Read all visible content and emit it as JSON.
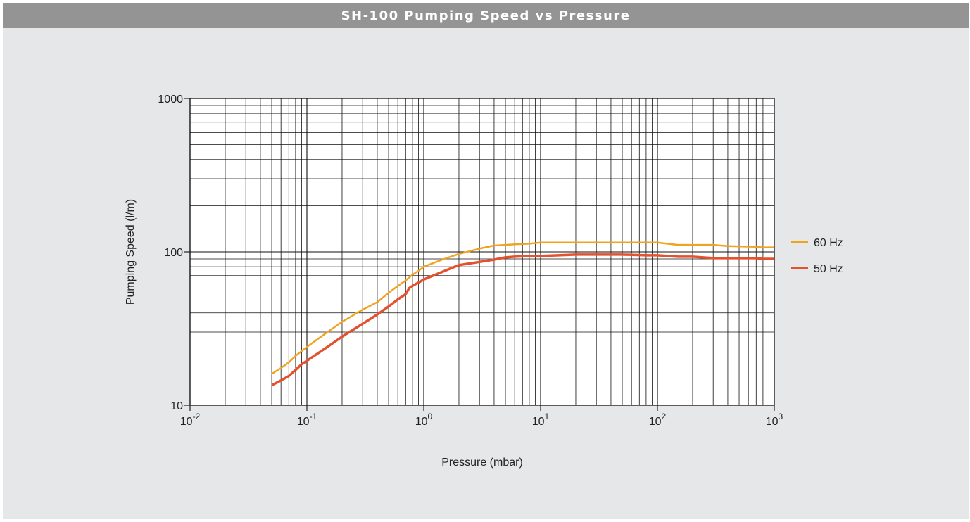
{
  "header": {
    "title": "SH-100 Pumping Speed vs Pressure"
  },
  "chart_data": {
    "type": "line",
    "title": "SH-100 Pumping Speed vs Pressure",
    "xlabel": "Pressure (mbar)",
    "ylabel": "Pumping Speed (l/m)",
    "x_scale": "log",
    "y_scale": "log",
    "xlim": [
      0.01,
      1000
    ],
    "ylim": [
      10,
      1000
    ],
    "x_ticks": [
      {
        "base": "10",
        "exp": "-2"
      },
      {
        "base": "10",
        "exp": "-1"
      },
      {
        "base": "10",
        "exp": "0"
      },
      {
        "base": "10",
        "exp": "1"
      },
      {
        "base": "10",
        "exp": "2"
      },
      {
        "base": "10",
        "exp": "3"
      }
    ],
    "y_ticks": [
      "10",
      "100",
      "1000"
    ],
    "grid": true,
    "legend_position": "right",
    "series": [
      {
        "name": "60 Hz",
        "color": "#f0a320",
        "x": [
          0.05,
          0.06,
          0.07,
          0.08,
          0.09,
          0.1,
          0.15,
          0.2,
          0.3,
          0.4,
          0.5,
          0.6,
          0.7,
          0.8,
          0.9,
          1.0,
          1.5,
          2,
          3,
          4,
          5,
          6,
          8,
          10,
          20,
          50,
          100,
          150,
          200,
          300,
          400,
          700,
          800,
          1000
        ],
        "y": [
          16,
          17.5,
          19,
          21,
          22.5,
          24,
          30,
          35,
          42,
          47,
          54,
          60,
          65,
          71,
          75,
          80,
          90,
          97,
          105,
          110,
          111,
          112,
          113,
          115,
          115,
          115,
          115,
          111,
          111,
          111,
          109,
          108,
          107,
          107
        ]
      },
      {
        "name": "50 Hz",
        "color": "#e4512e",
        "x": [
          0.05,
          0.06,
          0.07,
          0.08,
          0.09,
          0.1,
          0.15,
          0.2,
          0.3,
          0.4,
          0.5,
          0.6,
          0.7,
          0.75,
          0.8,
          0.9,
          1.0,
          1.5,
          2,
          3,
          4,
          5,
          6,
          8,
          10,
          20,
          50,
          80,
          100,
          150,
          200,
          300,
          500,
          700,
          800,
          1000
        ],
        "y": [
          13.5,
          14.5,
          15.5,
          17,
          18.5,
          19.5,
          24,
          28,
          34,
          39,
          44,
          49,
          53,
          58,
          60,
          63,
          66,
          75,
          82,
          86,
          89,
          92,
          93,
          94,
          94,
          96,
          96,
          95,
          95,
          93,
          93,
          91,
          91,
          91,
          90,
          90
        ]
      }
    ]
  }
}
